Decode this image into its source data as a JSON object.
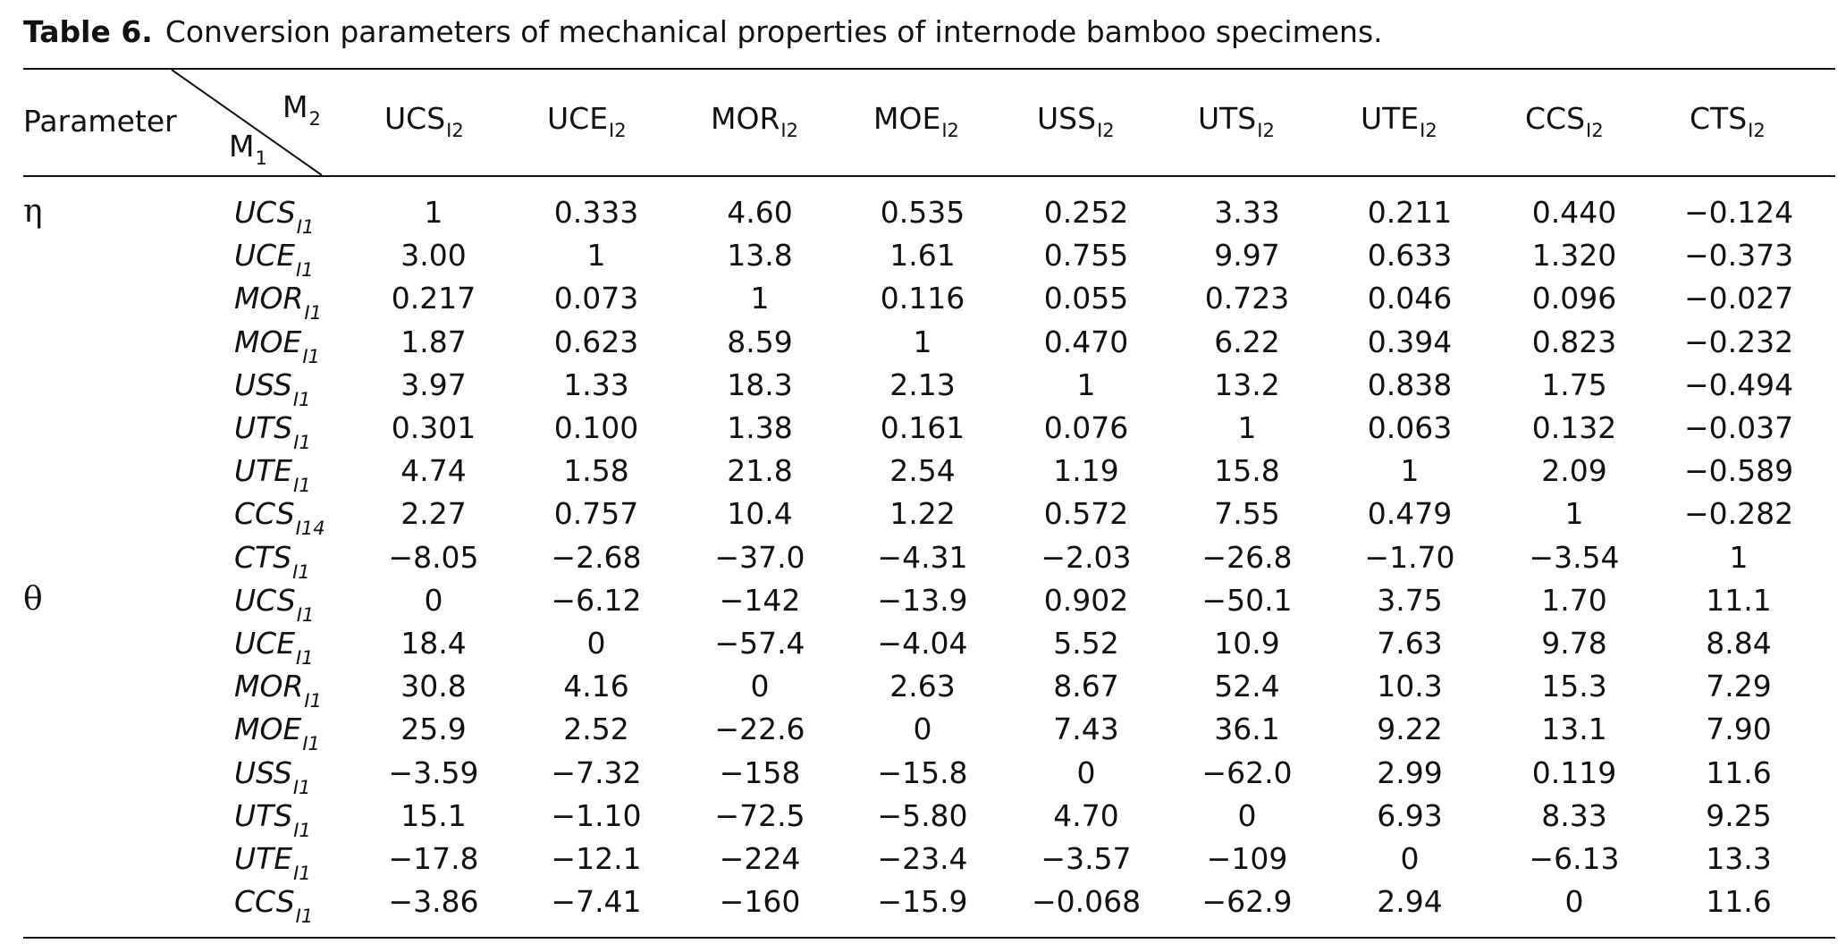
{
  "caption": {
    "label": "Table 6.",
    "text": "Conversion parameters of mechanical properties of internode bamboo specimens."
  },
  "header": {
    "parameter": "Parameter",
    "m2": "M",
    "m2_sub": "2",
    "m1": "M",
    "m1_sub": "1",
    "columns": [
      {
        "base": "UCS",
        "sub": "I2"
      },
      {
        "base": "UCE",
        "sub": "I2"
      },
      {
        "base": "MOR",
        "sub": "I2"
      },
      {
        "base": "MOE",
        "sub": "I2"
      },
      {
        "base": "USS",
        "sub": "I2"
      },
      {
        "base": "UTS",
        "sub": "I2"
      },
      {
        "base": "UTE",
        "sub": "I2"
      },
      {
        "base": "CCS",
        "sub": "I2"
      },
      {
        "base": "CTS",
        "sub": "I2"
      }
    ]
  },
  "groups": [
    {
      "symbol": "η"
    },
    {
      "symbol": "θ"
    }
  ],
  "rows": [
    {
      "base": "UCS",
      "sub": "I1",
      "values": [
        "1",
        "0.333",
        "4.60",
        "0.535",
        "0.252",
        "3.33",
        "0.211",
        "0.440",
        "−0.124"
      ]
    },
    {
      "base": "UCE",
      "sub": "I1",
      "values": [
        "3.00",
        "1",
        "13.8",
        "1.61",
        "0.755",
        "9.97",
        "0.633",
        "1.320",
        "−0.373"
      ]
    },
    {
      "base": "MOR",
      "sub": "I1",
      "values": [
        "0.217",
        "0.073",
        "1",
        "0.116",
        "0.055",
        "0.723",
        "0.046",
        "0.096",
        "−0.027"
      ]
    },
    {
      "base": "MOE",
      "sub": "I1",
      "values": [
        "1.87",
        "0.623",
        "8.59",
        "1",
        "0.470",
        "6.22",
        "0.394",
        "0.823",
        "−0.232"
      ]
    },
    {
      "base": "USS",
      "sub": "I1",
      "values": [
        "3.97",
        "1.33",
        "18.3",
        "2.13",
        "1",
        "13.2",
        "0.838",
        "1.75",
        "−0.494"
      ]
    },
    {
      "base": "UTS",
      "sub": "I1",
      "values": [
        "0.301",
        "0.100",
        "1.38",
        "0.161",
        "0.076",
        "1",
        "0.063",
        "0.132",
        "−0.037"
      ]
    },
    {
      "base": "UTE",
      "sub": "I1",
      "values": [
        "4.74",
        "1.58",
        "21.8",
        "2.54",
        "1.19",
        "15.8",
        "1",
        "2.09",
        "−0.589"
      ]
    },
    {
      "base": "CCS",
      "sub": "I14",
      "values": [
        "2.27",
        "0.757",
        "10.4",
        "1.22",
        "0.572",
        "7.55",
        "0.479",
        "1",
        "−0.282"
      ]
    },
    {
      "base": "CTS",
      "sub": "I1",
      "values": [
        "−8.05",
        "−2.68",
        "−37.0",
        "−4.31",
        "−2.03",
        "−26.8",
        "−1.70",
        "−3.54",
        "1"
      ]
    },
    {
      "base": "UCS",
      "sub": "I1",
      "values": [
        "0",
        "−6.12",
        "−142",
        "−13.9",
        "0.902",
        "−50.1",
        "3.75",
        "1.70",
        "11.1"
      ]
    },
    {
      "base": "UCE",
      "sub": "I1",
      "values": [
        "18.4",
        "0",
        "−57.4",
        "−4.04",
        "5.52",
        "10.9",
        "7.63",
        "9.78",
        "8.84"
      ]
    },
    {
      "base": "MOR",
      "sub": "I1",
      "values": [
        "30.8",
        "4.16",
        "0",
        "2.63",
        "8.67",
        "52.4",
        "10.3",
        "15.3",
        "7.29"
      ]
    },
    {
      "base": "MOE",
      "sub": "I1",
      "values": [
        "25.9",
        "2.52",
        "−22.6",
        "0",
        "7.43",
        "36.1",
        "9.22",
        "13.1",
        "7.90"
      ]
    },
    {
      "base": "USS",
      "sub": "I1",
      "values": [
        "−3.59",
        "−7.32",
        "−158",
        "−15.8",
        "0",
        "−62.0",
        "2.99",
        "0.119",
        "11.6"
      ]
    },
    {
      "base": "UTS",
      "sub": "I1",
      "values": [
        "15.1",
        "−1.10",
        "−72.5",
        "−5.80",
        "4.70",
        "0",
        "6.93",
        "8.33",
        "9.25"
      ]
    },
    {
      "base": "UTE",
      "sub": "I1",
      "values": [
        "−17.8",
        "−12.1",
        "−224",
        "−23.4",
        "−3.57",
        "−109",
        "0",
        "−6.13",
        "13.3"
      ]
    },
    {
      "base": "CCS",
      "sub": "I1",
      "values": [
        "−3.86",
        "−7.41",
        "−160",
        "−15.9",
        "−0.068",
        "−62.9",
        "2.94",
        "0",
        "11.6"
      ]
    }
  ]
}
